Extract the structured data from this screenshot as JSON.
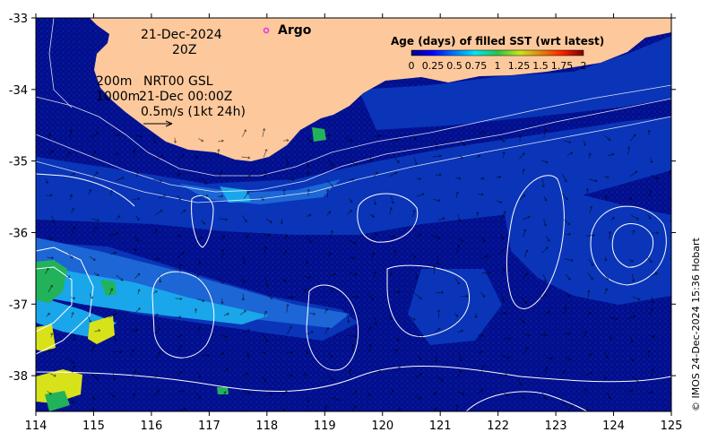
{
  "map": {
    "date_line1": "21-Dec-2024",
    "date_line2": "20Z",
    "legend_argo": "Argo",
    "depth_200": "200m",
    "depth_1000": "1000m",
    "nrt_product": "NRT00 GSL",
    "nrt_time": "21-Dec 00:00Z",
    "scale_vector": "0.5m/s (1kt 24h)",
    "credit": "© IMOS 24-Dec-2024 15:36 Hobart",
    "lon_labels": [
      "114",
      "115",
      "116",
      "117",
      "118",
      "119",
      "120",
      "121",
      "122",
      "123",
      "124",
      "125"
    ],
    "lat_labels": [
      "-33",
      "-34",
      "-35",
      "-36",
      "-37",
      "-38"
    ],
    "extent": {
      "lon": [
        114,
        125
      ],
      "lat": [
        -38.5,
        -33
      ]
    }
  },
  "colorbar": {
    "title": "Age (days) of filled SST (wrt latest)",
    "labels": [
      "0",
      "0.25",
      "0.5",
      "0.75",
      "1",
      "1.25",
      "1.5",
      "1.75",
      "2"
    ],
    "range": [
      0,
      2
    ]
  },
  "colors": {
    "land": "#fdc99c",
    "sea_dark": "#020d8a",
    "sea_mid": "#0a35b8",
    "sea_light": "#1c66d6",
    "sea_cyan": "#1aa6ea",
    "sea_green": "#22b35a",
    "sea_yellow": "#d8e21a",
    "argo_marker": "#e43ce4"
  }
}
